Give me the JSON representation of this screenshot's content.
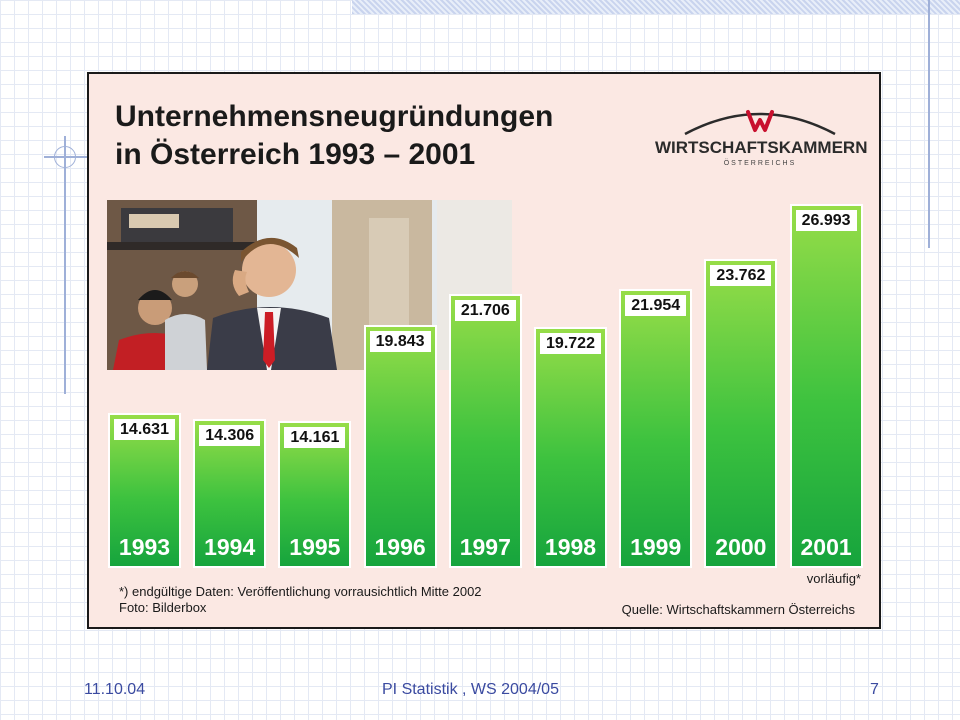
{
  "slide": {
    "footer_date": "11.10.04",
    "footer_title": "PI Statistik , WS 2004/05",
    "slide_number": "7"
  },
  "chart_data": {
    "type": "bar",
    "title_line1": "Unternehmensneugründungen",
    "title_line2": "in Österreich 1993 – 2001",
    "categories": [
      "1993",
      "1994",
      "1995",
      "1996",
      "1997",
      "1998",
      "1999",
      "2000",
      "2001"
    ],
    "values": [
      14631,
      14306,
      14161,
      19843,
      21706,
      19722,
      21954,
      23762,
      26993
    ],
    "value_labels": [
      "14.631",
      "14.306",
      "14.161",
      "19.843",
      "21.706",
      "19.722",
      "21.954",
      "23.762",
      "26.993"
    ],
    "ylim": [
      0,
      28000
    ],
    "preliminary_note": "vorläufig*",
    "footnote_line1": "*) endgültige Daten: Veröffentlichung vorrausichtlich Mitte 2002",
    "footnote_line2": "Foto: Bilderbox",
    "source": "Quelle: Wirtschaftskammern Österreichs",
    "bar_color_top": "#97dd48",
    "bar_color_bottom": "#16a43d"
  },
  "logo": {
    "name": "WIRTSCHAFTSKAMMERN",
    "sub": "ÖSTERREICHS",
    "accent_color": "#c8102e"
  }
}
